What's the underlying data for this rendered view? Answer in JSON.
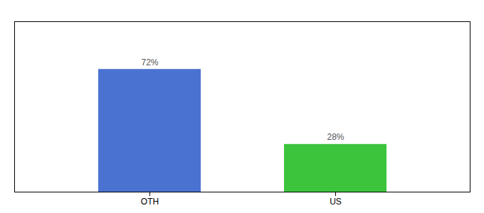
{
  "chart_data": {
    "type": "bar",
    "categories": [
      "OTH",
      "US"
    ],
    "values": [
      72,
      28
    ],
    "value_labels": [
      "72%",
      "28%"
    ],
    "colors": [
      "#4a72d1",
      "#3dc43d"
    ],
    "ylim": [
      0,
      100
    ],
    "grid": false,
    "data_labels": true,
    "tick_labels": "x"
  }
}
